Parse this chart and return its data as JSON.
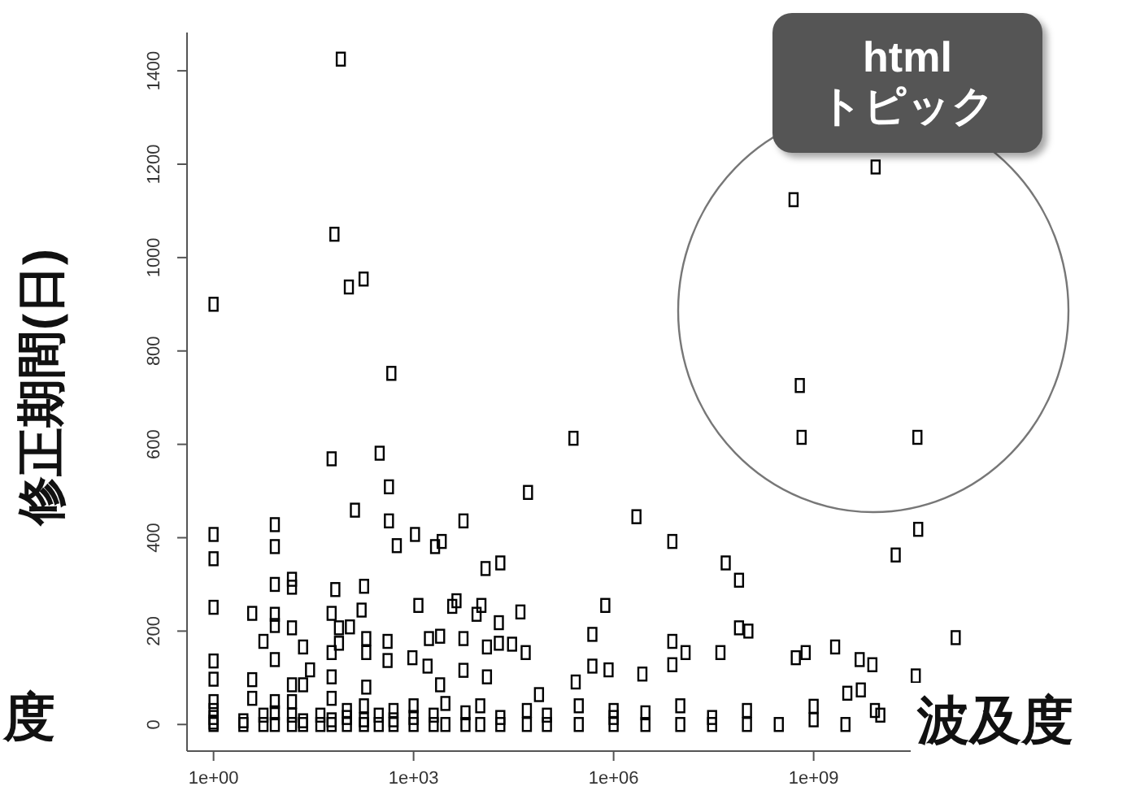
{
  "chart_data": {
    "type": "scatter",
    "xlabel": "波及度",
    "ylabel": "修正期間(日)",
    "annotations": [
      "html\nトピック",
      "度"
    ],
    "log": "x",
    "marker": "square",
    "xlim": [
      0.4,
      400000000000
    ],
    "ylim": [
      -57,
      1482
    ],
    "xticks": [
      {
        "value": 1,
        "label": "1e+00"
      },
      {
        "value": 1000,
        "label": "1e+03"
      },
      {
        "value": 1000000,
        "label": "1e+06"
      },
      {
        "value": 1000000000,
        "label": "1e+09"
      }
    ],
    "yticks": [
      0,
      200,
      400,
      600,
      800,
      1000,
      1200,
      1400
    ],
    "series": [
      {
        "color": "#000000",
        "x": [
          1,
          81,
          65,
          107,
          178,
          464,
          1,
          1,
          1,
          1,
          1,
          1,
          1,
          1,
          1,
          1,
          3.8,
          3.8,
          3.8,
          2.8,
          5.6,
          5.6,
          8.3,
          8.3,
          8.3,
          8.3,
          8.3,
          8.3,
          8.3,
          15,
          15,
          15,
          15,
          15,
          22,
          28,
          22,
          22,
          59,
          67,
          59,
          59,
          59,
          59,
          76,
          76,
          111,
          132,
          181,
          166,
          195,
          195,
          195,
          310,
          427,
          427,
          560,
          407,
          407,
          1050,
          1180,
          960,
          1620,
          1700,
          2100,
          2640,
          2500,
          2500,
          3800,
          4400,
          5600,
          5600,
          5600,
          8800,
          10400,
          12000,
          20000,
          12600,
          19000,
          19000,
          12600,
          30000,
          40000,
          48000,
          52000,
          76000,
          250000,
          2200000,
          7600000,
          48000000,
          76000000,
          750000,
          480000,
          480000,
          840000,
          270000,
          7600000,
          12000000,
          7600000,
          2700000,
          40000000,
          76000000,
          105000000,
          540000000,
          760000000,
          2100000000,
          4900000000,
          7600000000,
          3200000000,
          5100000000,
          8300000000,
          1000000000,
          17000000000,
          37000000000,
          135000000000,
          34000000000,
          660000000,
          36000000000,
          8500000000,
          500000000,
          620000000,
          2.8,
          5.6,
          8.3,
          8.3,
          15,
          15,
          22,
          40,
          40,
          59,
          59,
          100,
          100,
          100,
          180,
          180,
          180,
          300,
          300,
          500,
          500,
          500,
          1000,
          1000,
          1000,
          2000,
          2000,
          3000,
          3000,
          6000,
          6000,
          10000,
          10000,
          20000,
          20000,
          50000,
          50000,
          100000,
          100000,
          300000,
          300000,
          1000000,
          1000000,
          1000000,
          3000000,
          3000000,
          10000000,
          10000000,
          30000000,
          30000000,
          100000000,
          100000000,
          300000000,
          1000000000,
          3000000000,
          10000000000
        ],
        "values": [
          900,
          1425,
          1050,
          937,
          954,
          752,
          407,
          355,
          251,
          136,
          97,
          49,
          30,
          15,
          5,
          0,
          238,
          96,
          56,
          8,
          178,
          20,
          428,
          381,
          300,
          236,
          212,
          139,
          49,
          311,
          294,
          207,
          85,
          49,
          166,
          117,
          85,
          8,
          569,
          289,
          238,
          154,
          102,
          56,
          207,
          174,
          209,
          459,
          296,
          245,
          184,
          154,
          80,
          581,
          509,
          436,
          383,
          178,
          137,
          407,
          255,
          143,
          125,
          184,
          381,
          392,
          189,
          85,
          253,
          265,
          436,
          184,
          116,
          236,
          255,
          334,
          346,
          166,
          218,
          174,
          102,
          172,
          241,
          154,
          497,
          64,
          613,
          445,
          392,
          346,
          309,
          255,
          193,
          125,
          117,
          91,
          178,
          154,
          128,
          108,
          154,
          207,
          200,
          143,
          154,
          166,
          139,
          128,
          67,
          74,
          30,
          39,
          363,
          418,
          186,
          104,
          615,
          615,
          1194,
          1124,
          726,
          0,
          0,
          0,
          25,
          0,
          20,
          0,
          0,
          20,
          0,
          10,
          0,
          15,
          30,
          0,
          10,
          40,
          0,
          20,
          0,
          10,
          30,
          0,
          15,
          40,
          0,
          20,
          0,
          45,
          0,
          25,
          0,
          40,
          0,
          15,
          0,
          30,
          0,
          20,
          0,
          40,
          0,
          15,
          30,
          0,
          25,
          0,
          40,
          0,
          15,
          0,
          30,
          0,
          10,
          0,
          20
        ]
      }
    ]
  }
}
